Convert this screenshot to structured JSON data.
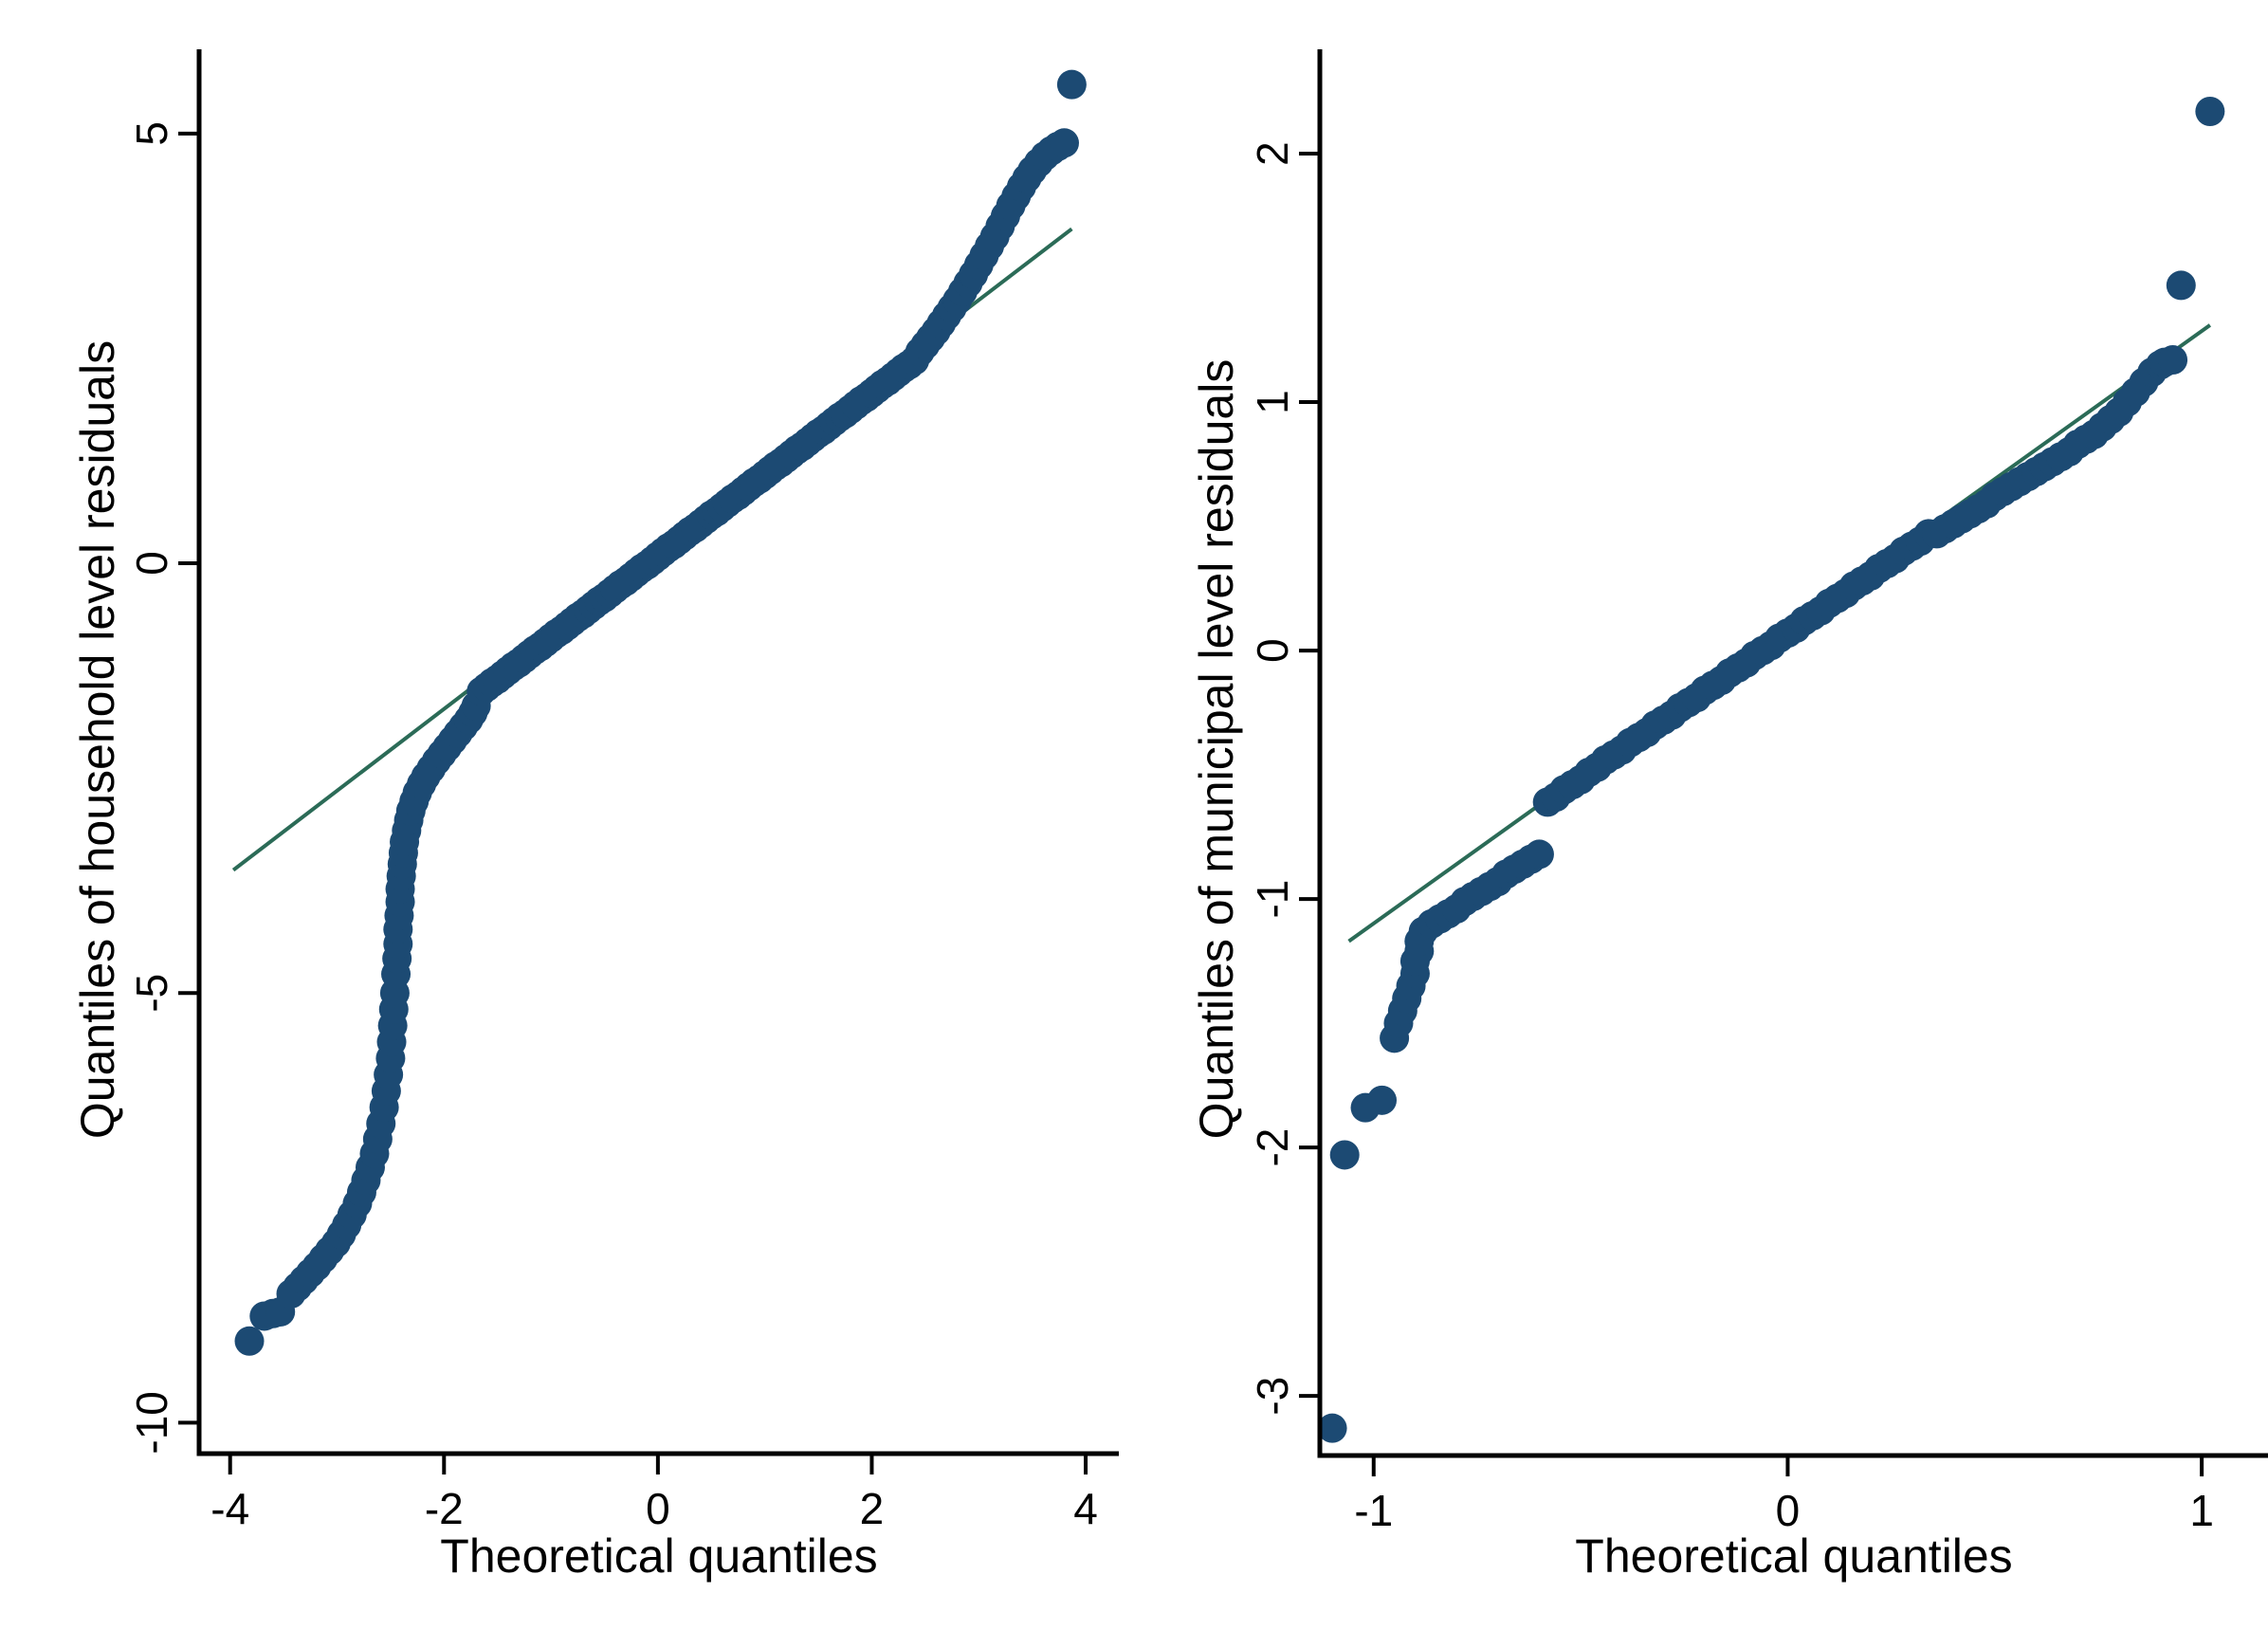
{
  "figure": {
    "background": "#ffffff",
    "axis_color": "#000000",
    "marker_color": "#1c4a73",
    "ref_line_color": "#2b6b57"
  },
  "chart_data": [
    {
      "type": "scatter",
      "title": "",
      "xlabel": "Theoretical quantiles",
      "ylabel": "Quantiles of household level residuals",
      "legend": "none",
      "grid": false,
      "xlim": [
        -4.29,
        4.31
      ],
      "ylim": [
        -10.36,
        5.98
      ],
      "x_ticks": [
        -4,
        -2,
        0,
        2,
        4
      ],
      "y_ticks": [
        5,
        0,
        -5,
        -10
      ],
      "marker_color": "#1c4a73",
      "line_color": "#2b6b57",
      "ref_line": {
        "x1": -3.97,
        "y1": -3.57,
        "x2": 3.87,
        "y2": 3.89
      },
      "points": [
        [
          -3.82,
          -9.05
        ],
        [
          -3.68,
          -8.76
        ],
        [
          -3.6,
          -8.73
        ],
        [
          -3.53,
          -8.71
        ],
        [
          -3.43,
          -8.5
        ],
        [
          -3.37,
          -8.42
        ],
        [
          -3.31,
          -8.34
        ],
        [
          -3.25,
          -8.26
        ],
        [
          -3.19,
          -8.18
        ],
        [
          -3.13,
          -8.09
        ],
        [
          -3.07,
          -8.0
        ],
        [
          -3.01,
          -7.91
        ],
        [
          -2.96,
          -7.81
        ],
        [
          -2.91,
          -7.7
        ],
        [
          -2.86,
          -7.58
        ],
        [
          -2.81,
          -7.45
        ],
        [
          -2.77,
          -7.32
        ],
        [
          -2.73,
          -7.18
        ],
        [
          -2.69,
          -7.03
        ],
        [
          -2.65,
          -6.87
        ],
        [
          -2.62,
          -6.7
        ],
        [
          -2.59,
          -6.52
        ],
        [
          -2.56,
          -6.33
        ],
        [
          -2.54,
          -6.14
        ],
        [
          -2.52,
          -5.95
        ],
        [
          -2.5,
          -5.76
        ],
        [
          -2.49,
          -5.57
        ],
        [
          -2.48,
          -5.38
        ],
        [
          -2.47,
          -5.19
        ],
        [
          -2.46,
          -5.0
        ],
        [
          -2.45,
          -4.78
        ],
        [
          -2.44,
          -4.6
        ],
        [
          -2.43,
          -4.43
        ],
        [
          -2.43,
          -4.26
        ],
        [
          -2.42,
          -4.1
        ],
        [
          -2.41,
          -3.94
        ],
        [
          -2.41,
          -3.79
        ],
        [
          -2.4,
          -3.64
        ],
        [
          -2.39,
          -3.5
        ],
        [
          -2.38,
          -3.37
        ],
        [
          -2.37,
          -3.24
        ],
        [
          -2.35,
          -3.11
        ],
        [
          -2.33,
          -2.99
        ],
        [
          -2.31,
          -2.88
        ],
        [
          -2.28,
          -2.77
        ],
        [
          -2.25,
          -2.67
        ],
        [
          -2.21,
          -2.57
        ],
        [
          -2.17,
          -2.48
        ],
        [
          -2.12,
          -2.39
        ],
        [
          -2.07,
          -2.3
        ],
        [
          -2.02,
          -2.22
        ],
        [
          -1.97,
          -2.14
        ],
        [
          -1.92,
          -2.06
        ],
        [
          -1.87,
          -1.98
        ],
        [
          -1.82,
          -1.9
        ],
        [
          -1.77,
          -1.82
        ],
        [
          -1.73,
          -1.74
        ],
        [
          -1.7,
          -1.66
        ],
        [
          -1.65,
          -1.49
        ],
        [
          -1.6,
          -1.44
        ],
        [
          -1.55,
          -1.39
        ],
        [
          -1.5,
          -1.35
        ],
        [
          -1.45,
          -1.3
        ],
        [
          -1.4,
          -1.25
        ],
        [
          -1.35,
          -1.2
        ],
        [
          -1.3,
          -1.16
        ],
        [
          -1.25,
          -1.11
        ],
        [
          -1.2,
          -1.06
        ],
        [
          -1.15,
          -1.01
        ],
        [
          -1.1,
          -0.97
        ],
        [
          -1.05,
          -0.92
        ],
        [
          -1.0,
          -0.87
        ],
        [
          -0.95,
          -0.82
        ],
        [
          -0.9,
          -0.78
        ],
        [
          -0.85,
          -0.73
        ],
        [
          -0.8,
          -0.68
        ],
        [
          -0.75,
          -0.63
        ],
        [
          -0.7,
          -0.59
        ],
        [
          -0.65,
          -0.54
        ],
        [
          -0.6,
          -0.49
        ],
        [
          -0.55,
          -0.44
        ],
        [
          -0.5,
          -0.4
        ],
        [
          -0.45,
          -0.35
        ],
        [
          -0.4,
          -0.3
        ],
        [
          -0.35,
          -0.25
        ],
        [
          -0.3,
          -0.21
        ],
        [
          -0.25,
          -0.16
        ],
        [
          -0.2,
          -0.11
        ],
        [
          -0.15,
          -0.06
        ],
        [
          -0.1,
          -0.02
        ],
        [
          -0.05,
          0.03
        ],
        [
          0.0,
          0.08
        ],
        [
          0.05,
          0.13
        ],
        [
          0.1,
          0.18
        ],
        [
          0.15,
          0.22
        ],
        [
          0.2,
          0.27
        ],
        [
          0.25,
          0.32
        ],
        [
          0.3,
          0.37
        ],
        [
          0.35,
          0.41
        ],
        [
          0.4,
          0.46
        ],
        [
          0.45,
          0.51
        ],
        [
          0.5,
          0.56
        ],
        [
          0.55,
          0.6
        ],
        [
          0.6,
          0.65
        ],
        [
          0.65,
          0.7
        ],
        [
          0.7,
          0.75
        ],
        [
          0.75,
          0.79
        ],
        [
          0.8,
          0.84
        ],
        [
          0.85,
          0.89
        ],
        [
          0.9,
          0.94
        ],
        [
          0.95,
          0.98
        ],
        [
          1.0,
          1.03
        ],
        [
          1.05,
          1.08
        ],
        [
          1.1,
          1.13
        ],
        [
          1.15,
          1.17
        ],
        [
          1.2,
          1.22
        ],
        [
          1.25,
          1.27
        ],
        [
          1.3,
          1.32
        ],
        [
          1.35,
          1.36
        ],
        [
          1.4,
          1.41
        ],
        [
          1.45,
          1.46
        ],
        [
          1.5,
          1.51
        ],
        [
          1.55,
          1.55
        ],
        [
          1.6,
          1.6
        ],
        [
          1.65,
          1.65
        ],
        [
          1.7,
          1.7
        ],
        [
          1.75,
          1.74
        ],
        [
          1.8,
          1.79
        ],
        [
          1.85,
          1.84
        ],
        [
          1.9,
          1.89
        ],
        [
          1.95,
          1.93
        ],
        [
          2.0,
          1.98
        ],
        [
          2.05,
          2.03
        ],
        [
          2.1,
          2.08
        ],
        [
          2.15,
          2.12
        ],
        [
          2.2,
          2.17
        ],
        [
          2.25,
          2.22
        ],
        [
          2.3,
          2.27
        ],
        [
          2.35,
          2.31
        ],
        [
          2.4,
          2.36
        ],
        [
          2.45,
          2.46
        ],
        [
          2.5,
          2.54
        ],
        [
          2.55,
          2.62
        ],
        [
          2.6,
          2.7
        ],
        [
          2.65,
          2.79
        ],
        [
          2.7,
          2.88
        ],
        [
          2.75,
          2.97
        ],
        [
          2.8,
          3.06
        ],
        [
          2.85,
          3.16
        ],
        [
          2.9,
          3.26
        ],
        [
          2.95,
          3.36
        ],
        [
          3.0,
          3.47
        ],
        [
          3.05,
          3.58
        ],
        [
          3.1,
          3.69
        ],
        [
          3.15,
          3.8
        ],
        [
          3.2,
          3.92
        ],
        [
          3.25,
          4.04
        ],
        [
          3.3,
          4.16
        ],
        [
          3.35,
          4.27
        ],
        [
          3.4,
          4.38
        ],
        [
          3.45,
          4.48
        ],
        [
          3.5,
          4.57
        ],
        [
          3.56,
          4.66
        ],
        [
          3.62,
          4.74
        ],
        [
          3.68,
          4.8
        ],
        [
          3.74,
          4.85
        ],
        [
          3.8,
          4.89
        ],
        [
          3.87,
          5.57
        ]
      ]
    },
    {
      "type": "scatter",
      "title": "",
      "xlabel": "Theoretical quantiles",
      "ylabel": "Quantiles of municipal level residuals",
      "legend": "none",
      "grid": false,
      "xlim": [
        -1.13,
        1.16
      ],
      "ylim": [
        -3.24,
        2.42
      ],
      "x_ticks": [
        -1,
        0,
        1
      ],
      "y_ticks": [
        2,
        1,
        0,
        -1,
        -2,
        -3
      ],
      "marker_color": "#1c4a73",
      "line_color": "#2b6b57",
      "ref_line": {
        "x1": -1.06,
        "y1": -1.17,
        "x2": 1.02,
        "y2": 1.31
      },
      "points": [
        [
          -1.1,
          -3.13
        ],
        [
          -1.07,
          -2.03
        ],
        [
          -1.02,
          -1.84
        ],
        [
          -0.98,
          -1.81
        ],
        [
          -0.95,
          -1.56
        ],
        [
          -0.94,
          -1.5
        ],
        [
          -0.93,
          -1.45
        ],
        [
          -0.92,
          -1.4
        ],
        [
          -0.91,
          -1.35
        ],
        [
          -0.9,
          -1.3
        ],
        [
          -0.9,
          -1.25
        ],
        [
          -0.89,
          -1.21
        ],
        [
          -0.89,
          -1.17
        ],
        [
          -0.88,
          -1.13
        ],
        [
          -0.86,
          -1.1
        ],
        [
          -0.84,
          -1.08
        ],
        [
          -0.82,
          -1.06
        ],
        [
          -0.8,
          -1.04
        ],
        [
          -0.78,
          -1.01
        ],
        [
          -0.76,
          -0.99
        ],
        [
          -0.74,
          -0.97
        ],
        [
          -0.72,
          -0.95
        ],
        [
          -0.7,
          -0.93
        ],
        [
          -0.68,
          -0.9
        ],
        [
          -0.66,
          -0.88
        ],
        [
          -0.64,
          -0.86
        ],
        [
          -0.62,
          -0.84
        ],
        [
          -0.6,
          -0.82
        ],
        [
          -0.58,
          -0.61
        ],
        [
          -0.56,
          -0.59
        ],
        [
          -0.54,
          -0.56
        ],
        [
          -0.52,
          -0.54
        ],
        [
          -0.5,
          -0.52
        ],
        [
          -0.48,
          -0.49
        ],
        [
          -0.46,
          -0.47
        ],
        [
          -0.44,
          -0.44
        ],
        [
          -0.42,
          -0.42
        ],
        [
          -0.4,
          -0.4
        ],
        [
          -0.38,
          -0.37
        ],
        [
          -0.36,
          -0.35
        ],
        [
          -0.34,
          -0.33
        ],
        [
          -0.32,
          -0.3
        ],
        [
          -0.3,
          -0.28
        ],
        [
          -0.28,
          -0.26
        ],
        [
          -0.26,
          -0.23
        ],
        [
          -0.24,
          -0.21
        ],
        [
          -0.22,
          -0.19
        ],
        [
          -0.2,
          -0.16
        ],
        [
          -0.18,
          -0.14
        ],
        [
          -0.16,
          -0.12
        ],
        [
          -0.14,
          -0.09
        ],
        [
          -0.12,
          -0.07
        ],
        [
          -0.1,
          -0.05
        ],
        [
          -0.08,
          -0.02
        ],
        [
          -0.06,
          0.0
        ],
        [
          -0.04,
          0.02
        ],
        [
          -0.02,
          0.05
        ],
        [
          0.0,
          0.07
        ],
        [
          0.02,
          0.09
        ],
        [
          0.04,
          0.12
        ],
        [
          0.06,
          0.14
        ],
        [
          0.08,
          0.16
        ],
        [
          0.1,
          0.19
        ],
        [
          0.12,
          0.21
        ],
        [
          0.14,
          0.23
        ],
        [
          0.16,
          0.26
        ],
        [
          0.18,
          0.28
        ],
        [
          0.2,
          0.3
        ],
        [
          0.22,
          0.33
        ],
        [
          0.24,
          0.35
        ],
        [
          0.26,
          0.37
        ],
        [
          0.28,
          0.4
        ],
        [
          0.3,
          0.42
        ],
        [
          0.32,
          0.44
        ],
        [
          0.34,
          0.47
        ],
        [
          0.36,
          0.47
        ],
        [
          0.38,
          0.49
        ],
        [
          0.4,
          0.51
        ],
        [
          0.42,
          0.53
        ],
        [
          0.44,
          0.55
        ],
        [
          0.46,
          0.57
        ],
        [
          0.48,
          0.59
        ],
        [
          0.5,
          0.62
        ],
        [
          0.52,
          0.64
        ],
        [
          0.54,
          0.66
        ],
        [
          0.56,
          0.68
        ],
        [
          0.58,
          0.7
        ],
        [
          0.6,
          0.72
        ],
        [
          0.62,
          0.74
        ],
        [
          0.64,
          0.76
        ],
        [
          0.66,
          0.78
        ],
        [
          0.68,
          0.8
        ],
        [
          0.7,
          0.83
        ],
        [
          0.72,
          0.85
        ],
        [
          0.74,
          0.87
        ],
        [
          0.76,
          0.9
        ],
        [
          0.78,
          0.93
        ],
        [
          0.8,
          0.96
        ],
        [
          0.82,
          1.0
        ],
        [
          0.84,
          1.04
        ],
        [
          0.86,
          1.08
        ],
        [
          0.88,
          1.12
        ],
        [
          0.9,
          1.15
        ],
        [
          0.91,
          1.16
        ],
        [
          0.93,
          1.17
        ],
        [
          0.95,
          1.47
        ],
        [
          1.02,
          2.17
        ]
      ]
    }
  ]
}
